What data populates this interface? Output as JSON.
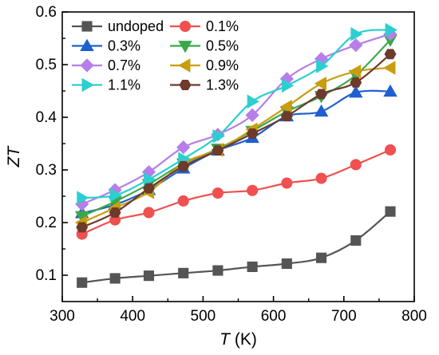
{
  "chart_data": {
    "type": "line",
    "xlabel": {
      "italic": "T",
      "unit": " (K)"
    },
    "ylabel": "ZT",
    "xlim": [
      300,
      800
    ],
    "ylim": [
      0.05,
      0.6
    ],
    "xticks": [
      300,
      400,
      500,
      600,
      700,
      800
    ],
    "yticks": [
      0.1,
      0.2,
      0.3,
      0.4,
      0.5,
      0.6
    ],
    "grid": false,
    "legend_position": "top-left",
    "x": [
      328,
      375,
      423,
      472,
      521,
      570,
      619,
      668,
      717,
      766
    ],
    "series": [
      {
        "name": "undoped",
        "color": "#555555",
        "marker": "square",
        "values": [
          0.086,
          0.094,
          0.099,
          0.104,
          0.109,
          0.116,
          0.122,
          0.133,
          0.166,
          0.221
        ]
      },
      {
        "name": "0.1%",
        "color": "#f05050",
        "marker": "circle",
        "values": [
          0.178,
          0.205,
          0.219,
          0.241,
          0.256,
          0.261,
          0.275,
          0.284,
          0.31,
          0.338
        ]
      },
      {
        "name": "0.3%",
        "color": "#1f5fd0",
        "marker": "triangle-up",
        "values": [
          0.218,
          0.234,
          0.262,
          0.303,
          0.337,
          0.361,
          0.402,
          0.411,
          0.447,
          0.449
        ]
      },
      {
        "name": "0.5%",
        "color": "#3aa84a",
        "marker": "triangle-down",
        "values": [
          0.212,
          0.24,
          0.273,
          0.312,
          0.34,
          0.374,
          0.411,
          0.44,
          0.48,
          0.547
        ]
      },
      {
        "name": "0.7%",
        "color": "#b57ee8",
        "marker": "diamond",
        "values": [
          0.235,
          0.262,
          0.296,
          0.343,
          0.367,
          0.404,
          0.473,
          0.511,
          0.537,
          0.558
        ]
      },
      {
        "name": "0.9%",
        "color": "#c89e0f",
        "marker": "triangle-left",
        "values": [
          0.2,
          0.228,
          0.258,
          0.313,
          0.338,
          0.377,
          0.42,
          0.464,
          0.487,
          0.494
        ]
      },
      {
        "name": "1.1%",
        "color": "#2ccfcf",
        "marker": "triangle-right",
        "values": [
          0.247,
          0.252,
          0.282,
          0.321,
          0.364,
          0.43,
          0.46,
          0.497,
          0.558,
          0.566
        ]
      },
      {
        "name": "1.3%",
        "color": "#6d3a2b",
        "marker": "hexagon",
        "values": [
          0.191,
          0.219,
          0.265,
          0.307,
          0.337,
          0.369,
          0.402,
          0.444,
          0.466,
          0.52
        ]
      }
    ]
  }
}
